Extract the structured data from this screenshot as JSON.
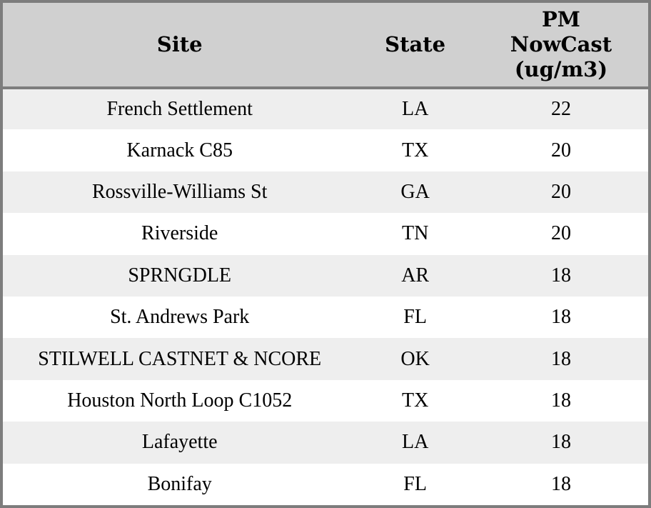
{
  "header": {
    "site": "Site",
    "state": "State",
    "pm_nowcast_lines": "PM\nNowCast\n(ug/m3)"
  },
  "colors": {
    "header_bg": "#d0d0d0",
    "border": "#7d7d7d",
    "row_alt_bg": "#eeeeee",
    "row_bg": "#ffffff",
    "text": "#000000"
  },
  "chart_data": {
    "type": "table",
    "columns": [
      "Site",
      "State",
      "PM NowCast (ug/m3)"
    ],
    "rows": [
      {
        "site": "French Settlement",
        "state": "LA",
        "pm_nowcast": "22"
      },
      {
        "site": "Karnack C85",
        "state": "TX",
        "pm_nowcast": "20"
      },
      {
        "site": "Rossville-Williams St",
        "state": "GA",
        "pm_nowcast": "20"
      },
      {
        "site": "Riverside",
        "state": "TN",
        "pm_nowcast": "20"
      },
      {
        "site": "SPRNGDLE",
        "state": "AR",
        "pm_nowcast": "18"
      },
      {
        "site": "St. Andrews Park",
        "state": "FL",
        "pm_nowcast": "18"
      },
      {
        "site": "STILWELL CASTNET & NCORE",
        "state": "OK",
        "pm_nowcast": "18"
      },
      {
        "site": "Houston North Loop C1052",
        "state": "TX",
        "pm_nowcast": "18"
      },
      {
        "site": "Lafayette",
        "state": "LA",
        "pm_nowcast": "18"
      },
      {
        "site": "Bonifay",
        "state": "FL",
        "pm_nowcast": "18"
      }
    ]
  }
}
